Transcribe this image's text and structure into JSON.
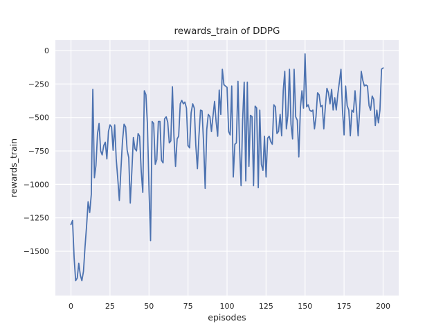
{
  "chart_data": {
    "type": "line",
    "title": "rewards_train of DDPG",
    "xlabel": "episodes",
    "ylabel": "rewards_train",
    "legend": null,
    "grid": true,
    "xlim": [
      -10,
      210
    ],
    "ylim": [
      -1831,
      78
    ],
    "xticks": [
      0,
      25,
      50,
      75,
      100,
      125,
      150,
      175,
      200
    ],
    "yticks": [
      0,
      -250,
      -500,
      -750,
      -1000,
      -1250,
      -1500
    ],
    "x_start": 0,
    "x_step": 1,
    "line_color": "#4C72B0",
    "axes_bg": "#EAEAF2",
    "figure_bg": "#FFFFFF",
    "grid_color": "#FFFFFF",
    "text_color": "#262626",
    "series": [
      {
        "name": "rewards_train",
        "values": [
          -1300,
          -1270,
          -1550,
          -1720,
          -1700,
          -1590,
          -1680,
          -1720,
          -1650,
          -1470,
          -1310,
          -1130,
          -1210,
          -1075,
          -290,
          -950,
          -860,
          -620,
          -545,
          -750,
          -780,
          -710,
          -685,
          -810,
          -605,
          -555,
          -570,
          -745,
          -555,
          -810,
          -960,
          -1120,
          -890,
          -680,
          -550,
          -570,
          -745,
          -800,
          -1140,
          -900,
          -650,
          -735,
          -750,
          -620,
          -640,
          -900,
          -1060,
          -300,
          -330,
          -550,
          -1040,
          -1420,
          -530,
          -545,
          -850,
          -815,
          -530,
          -530,
          -820,
          -840,
          -510,
          -495,
          -535,
          -690,
          -675,
          -270,
          -640,
          -865,
          -660,
          -640,
          -398,
          -372,
          -398,
          -385,
          -430,
          -710,
          -727,
          -466,
          -398,
          -430,
          -710,
          -882,
          -640,
          -445,
          -450,
          -700,
          -1030,
          -590,
          -477,
          -493,
          -605,
          -490,
          -380,
          -530,
          -640,
          -295,
          -477,
          -140,
          -255,
          -265,
          -275,
          -605,
          -630,
          -265,
          -945,
          -700,
          -690,
          -230,
          -710,
          -1010,
          -520,
          -236,
          -975,
          -236,
          -865,
          -484,
          -493,
          -1010,
          -415,
          -430,
          -1025,
          -445,
          -850,
          -895,
          -640,
          -945,
          -655,
          -640,
          -680,
          -700,
          -405,
          -420,
          -620,
          -605,
          -477,
          -637,
          -300,
          -155,
          -585,
          -485,
          -140,
          -550,
          -660,
          -140,
          -495,
          -520,
          -795,
          -430,
          -300,
          -430,
          -25,
          -420,
          -405,
          -445,
          -455,
          -445,
          -585,
          -495,
          -315,
          -330,
          -420,
          -410,
          -585,
          -420,
          -282,
          -315,
          -398,
          -290,
          -444,
          -352,
          -444,
          -323,
          -235,
          -140,
          -445,
          -630,
          -265,
          -412,
          -445,
          -637,
          -445,
          -460,
          -300,
          -445,
          -637,
          -445,
          -155,
          -222,
          -265,
          -257,
          -265,
          -412,
          -445,
          -340,
          -365,
          -560,
          -445,
          -540,
          -445,
          -139,
          -130
        ]
      }
    ]
  }
}
